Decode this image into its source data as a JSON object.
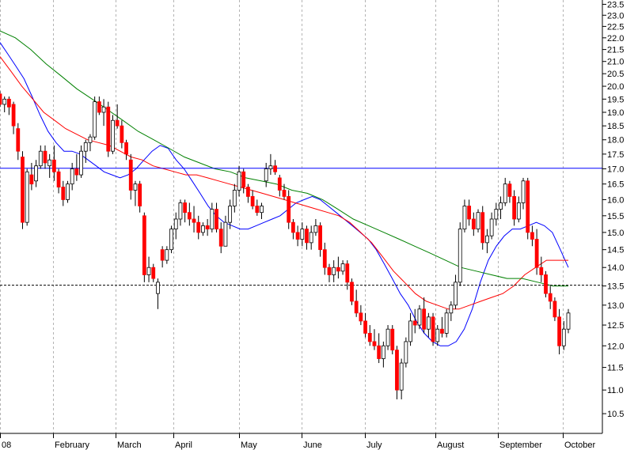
{
  "chart_data": {
    "type": "candlestick",
    "title": "",
    "xlabel": "",
    "ylabel": "",
    "ylim": [
      10.1,
      23.7
    ],
    "y_scale": "log",
    "grid": {
      "vertical": true,
      "horizontal": false
    },
    "x_tick_labels": [
      "08",
      "February",
      "March",
      "April",
      "May",
      "June",
      "July",
      "August",
      "September",
      "October"
    ],
    "y_tick_labels": [
      "10.5",
      "11.0",
      "11.5",
      "12.0",
      "12.5",
      "13.0",
      "13.5",
      "14.0",
      "14.5",
      "15.0",
      "15.5",
      "16.0",
      "16.5",
      "17.0",
      "17.5",
      "18.0",
      "18.5",
      "19.0",
      "19.5",
      "20.0",
      "20.5",
      "21.0",
      "21.5",
      "22.0",
      "22.5",
      "23.0",
      "23.5"
    ],
    "reference_lines": [
      {
        "value": 17.02,
        "style": "solid",
        "color": "#0000ff"
      },
      {
        "value": 13.52,
        "style": "dashed",
        "color": "#000000"
      }
    ],
    "candles": [
      {
        "o": 19.7,
        "h": 19.8,
        "l": 19.2,
        "c": 19.3
      },
      {
        "o": 19.3,
        "h": 19.6,
        "l": 19.0,
        "c": 19.5
      },
      {
        "o": 19.5,
        "h": 19.6,
        "l": 18.9,
        "c": 19.2
      },
      {
        "o": 19.3,
        "h": 19.4,
        "l": 18.2,
        "c": 18.5
      },
      {
        "o": 18.4,
        "h": 18.6,
        "l": 17.3,
        "c": 17.6
      },
      {
        "o": 17.4,
        "h": 17.6,
        "l": 15.1,
        "c": 15.3
      },
      {
        "o": 15.3,
        "h": 17.0,
        "l": 15.2,
        "c": 16.9
      },
      {
        "o": 16.8,
        "h": 17.2,
        "l": 16.3,
        "c": 16.5
      },
      {
        "o": 16.6,
        "h": 17.3,
        "l": 16.4,
        "c": 17.1
      },
      {
        "o": 17.1,
        "h": 17.8,
        "l": 17.0,
        "c": 17.6
      },
      {
        "o": 17.6,
        "h": 17.8,
        "l": 17.0,
        "c": 17.2
      },
      {
        "o": 17.1,
        "h": 17.5,
        "l": 16.7,
        "c": 17.3
      },
      {
        "o": 17.3,
        "h": 17.8,
        "l": 16.6,
        "c": 16.9
      },
      {
        "o": 16.9,
        "h": 17.0,
        "l": 16.2,
        "c": 16.4
      },
      {
        "o": 16.4,
        "h": 16.6,
        "l": 15.8,
        "c": 16.0
      },
      {
        "o": 16.0,
        "h": 16.6,
        "l": 15.9,
        "c": 16.5
      },
      {
        "o": 16.5,
        "h": 17.2,
        "l": 16.3,
        "c": 17.0
      },
      {
        "o": 17.0,
        "h": 17.5,
        "l": 16.6,
        "c": 16.8
      },
      {
        "o": 16.8,
        "h": 17.8,
        "l": 16.7,
        "c": 17.6
      },
      {
        "o": 17.6,
        "h": 18.0,
        "l": 17.2,
        "c": 17.9
      },
      {
        "o": 17.9,
        "h": 18.2,
        "l": 17.6,
        "c": 18.1
      },
      {
        "o": 18.1,
        "h": 19.6,
        "l": 18.0,
        "c": 19.4
      },
      {
        "o": 19.4,
        "h": 19.6,
        "l": 18.9,
        "c": 19.0
      },
      {
        "o": 19.0,
        "h": 19.5,
        "l": 18.5,
        "c": 19.2
      },
      {
        "o": 19.2,
        "h": 19.4,
        "l": 17.4,
        "c": 17.6
      },
      {
        "o": 17.6,
        "h": 18.9,
        "l": 17.5,
        "c": 18.7
      },
      {
        "o": 18.7,
        "h": 19.3,
        "l": 18.4,
        "c": 18.5
      },
      {
        "o": 18.5,
        "h": 18.7,
        "l": 17.7,
        "c": 17.9
      },
      {
        "o": 17.9,
        "h": 18.0,
        "l": 17.3,
        "c": 17.5
      },
      {
        "o": 17.3,
        "h": 17.5,
        "l": 16.0,
        "c": 16.3
      },
      {
        "o": 16.3,
        "h": 16.6,
        "l": 15.8,
        "c": 16.5
      },
      {
        "o": 16.5,
        "h": 16.6,
        "l": 15.6,
        "c": 15.8
      },
      {
        "o": 15.5,
        "h": 15.6,
        "l": 13.6,
        "c": 13.8
      },
      {
        "o": 13.8,
        "h": 14.3,
        "l": 13.6,
        "c": 14.0
      },
      {
        "o": 14.0,
        "h": 14.1,
        "l": 13.6,
        "c": 13.7
      },
      {
        "o": 13.3,
        "h": 13.7,
        "l": 12.9,
        "c": 13.6
      },
      {
        "o": 14.5,
        "h": 14.6,
        "l": 14.0,
        "c": 14.2
      },
      {
        "o": 14.2,
        "h": 14.6,
        "l": 14.1,
        "c": 14.5
      },
      {
        "o": 14.5,
        "h": 15.2,
        "l": 14.4,
        "c": 15.1
      },
      {
        "o": 15.1,
        "h": 15.6,
        "l": 14.8,
        "c": 15.4
      },
      {
        "o": 15.4,
        "h": 16.0,
        "l": 15.2,
        "c": 15.9
      },
      {
        "o": 15.9,
        "h": 16.0,
        "l": 15.3,
        "c": 15.6
      },
      {
        "o": 15.6,
        "h": 15.9,
        "l": 15.2,
        "c": 15.4
      },
      {
        "o": 15.4,
        "h": 15.8,
        "l": 15.0,
        "c": 15.3
      },
      {
        "o": 15.3,
        "h": 15.5,
        "l": 14.8,
        "c": 15.0
      },
      {
        "o": 15.0,
        "h": 15.3,
        "l": 14.9,
        "c": 15.2
      },
      {
        "o": 15.2,
        "h": 15.4,
        "l": 14.9,
        "c": 15.1
      },
      {
        "o": 15.1,
        "h": 15.9,
        "l": 15.0,
        "c": 15.7
      },
      {
        "o": 15.7,
        "h": 15.9,
        "l": 15.0,
        "c": 15.1
      },
      {
        "o": 15.1,
        "h": 15.3,
        "l": 14.4,
        "c": 14.6
      },
      {
        "o": 14.6,
        "h": 15.5,
        "l": 14.6,
        "c": 15.3
      },
      {
        "o": 15.3,
        "h": 16.0,
        "l": 15.1,
        "c": 15.8
      },
      {
        "o": 15.8,
        "h": 16.5,
        "l": 15.6,
        "c": 16.3
      },
      {
        "o": 16.3,
        "h": 17.1,
        "l": 16.1,
        "c": 16.9
      },
      {
        "o": 16.9,
        "h": 17.0,
        "l": 16.2,
        "c": 16.4
      },
      {
        "o": 16.4,
        "h": 16.5,
        "l": 15.9,
        "c": 16.1
      },
      {
        "o": 16.1,
        "h": 16.3,
        "l": 15.7,
        "c": 15.8
      },
      {
        "o": 15.8,
        "h": 16.0,
        "l": 15.5,
        "c": 15.6
      },
      {
        "o": 15.6,
        "h": 15.9,
        "l": 15.4,
        "c": 15.8
      },
      {
        "o": 16.6,
        "h": 17.2,
        "l": 16.4,
        "c": 17.0
      },
      {
        "o": 17.0,
        "h": 17.5,
        "l": 16.8,
        "c": 17.1
      },
      {
        "o": 17.1,
        "h": 17.3,
        "l": 16.8,
        "c": 16.9
      },
      {
        "o": 16.7,
        "h": 16.8,
        "l": 16.1,
        "c": 16.3
      },
      {
        "o": 16.3,
        "h": 16.5,
        "l": 16.0,
        "c": 16.1
      },
      {
        "o": 16.1,
        "h": 16.3,
        "l": 15.1,
        "c": 15.3
      },
      {
        "o": 15.3,
        "h": 15.4,
        "l": 14.8,
        "c": 15.0
      },
      {
        "o": 15.0,
        "h": 15.2,
        "l": 14.6,
        "c": 14.8
      },
      {
        "o": 14.8,
        "h": 15.3,
        "l": 14.6,
        "c": 15.1
      },
      {
        "o": 15.1,
        "h": 15.2,
        "l": 14.5,
        "c": 14.7
      },
      {
        "o": 14.7,
        "h": 15.2,
        "l": 14.5,
        "c": 15.0
      },
      {
        "o": 15.0,
        "h": 15.4,
        "l": 14.9,
        "c": 15.2
      },
      {
        "o": 15.2,
        "h": 15.3,
        "l": 14.3,
        "c": 14.5
      },
      {
        "o": 14.5,
        "h": 14.7,
        "l": 13.8,
        "c": 14.0
      },
      {
        "o": 14.0,
        "h": 14.1,
        "l": 13.6,
        "c": 13.8
      },
      {
        "o": 13.8,
        "h": 14.2,
        "l": 13.6,
        "c": 14.0
      },
      {
        "o": 14.0,
        "h": 14.3,
        "l": 13.7,
        "c": 13.9
      },
      {
        "o": 13.9,
        "h": 14.2,
        "l": 13.8,
        "c": 14.1
      },
      {
        "o": 14.1,
        "h": 14.2,
        "l": 13.4,
        "c": 13.6
      },
      {
        "o": 13.6,
        "h": 13.7,
        "l": 13.0,
        "c": 13.1
      },
      {
        "o": 13.1,
        "h": 13.4,
        "l": 12.7,
        "c": 12.8
      },
      {
        "o": 12.8,
        "h": 13.0,
        "l": 12.5,
        "c": 12.6
      },
      {
        "o": 12.6,
        "h": 12.8,
        "l": 12.2,
        "c": 12.3
      },
      {
        "o": 12.3,
        "h": 12.5,
        "l": 12.0,
        "c": 12.1
      },
      {
        "o": 12.1,
        "h": 12.4,
        "l": 11.9,
        "c": 12.0
      },
      {
        "o": 12.0,
        "h": 12.3,
        "l": 11.6,
        "c": 11.7
      },
      {
        "o": 11.7,
        "h": 12.1,
        "l": 11.5,
        "c": 12.0
      },
      {
        "o": 12.0,
        "h": 12.5,
        "l": 11.9,
        "c": 12.4
      },
      {
        "o": 12.4,
        "h": 12.5,
        "l": 11.8,
        "c": 11.9
      },
      {
        "o": 11.9,
        "h": 12.0,
        "l": 10.8,
        "c": 11.0
      },
      {
        "o": 11.0,
        "h": 11.7,
        "l": 10.8,
        "c": 11.6
      },
      {
        "o": 11.6,
        "h": 12.2,
        "l": 11.5,
        "c": 12.1
      },
      {
        "o": 12.1,
        "h": 12.8,
        "l": 12.0,
        "c": 12.6
      },
      {
        "o": 12.6,
        "h": 12.9,
        "l": 12.3,
        "c": 12.5
      },
      {
        "o": 12.5,
        "h": 13.0,
        "l": 12.4,
        "c": 12.9
      },
      {
        "o": 12.9,
        "h": 13.2,
        "l": 12.3,
        "c": 12.4
      },
      {
        "o": 12.4,
        "h": 12.8,
        "l": 12.2,
        "c": 12.7
      },
      {
        "o": 12.7,
        "h": 12.8,
        "l": 12.0,
        "c": 12.1
      },
      {
        "o": 12.1,
        "h": 12.5,
        "l": 12.0,
        "c": 12.4
      },
      {
        "o": 12.4,
        "h": 12.7,
        "l": 12.2,
        "c": 12.3
      },
      {
        "o": 12.3,
        "h": 12.9,
        "l": 12.2,
        "c": 12.8
      },
      {
        "o": 12.8,
        "h": 13.1,
        "l": 12.6,
        "c": 13.0
      },
      {
        "o": 13.0,
        "h": 13.8,
        "l": 12.9,
        "c": 13.6
      },
      {
        "o": 13.6,
        "h": 15.3,
        "l": 13.5,
        "c": 15.1
      },
      {
        "o": 15.1,
        "h": 16.0,
        "l": 15.0,
        "c": 15.8
      },
      {
        "o": 15.8,
        "h": 16.0,
        "l": 15.2,
        "c": 15.4
      },
      {
        "o": 15.4,
        "h": 15.6,
        "l": 14.9,
        "c": 15.1
      },
      {
        "o": 15.1,
        "h": 15.7,
        "l": 15.0,
        "c": 15.6
      },
      {
        "o": 15.6,
        "h": 15.8,
        "l": 14.5,
        "c": 14.7
      },
      {
        "o": 14.7,
        "h": 15.1,
        "l": 14.4,
        "c": 14.9
      },
      {
        "o": 14.9,
        "h": 15.6,
        "l": 14.8,
        "c": 15.4
      },
      {
        "o": 15.4,
        "h": 15.9,
        "l": 15.2,
        "c": 15.7
      },
      {
        "o": 15.7,
        "h": 16.1,
        "l": 15.4,
        "c": 15.9
      },
      {
        "o": 15.9,
        "h": 16.7,
        "l": 15.8,
        "c": 16.5
      },
      {
        "o": 16.5,
        "h": 16.6,
        "l": 15.9,
        "c": 16.1
      },
      {
        "o": 16.1,
        "h": 16.3,
        "l": 15.2,
        "c": 15.4
      },
      {
        "o": 15.4,
        "h": 16.1,
        "l": 15.3,
        "c": 15.9
      },
      {
        "o": 15.9,
        "h": 16.7,
        "l": 15.7,
        "c": 16.6
      },
      {
        "o": 16.6,
        "h": 16.7,
        "l": 14.8,
        "c": 15.0
      },
      {
        "o": 15.0,
        "h": 15.2,
        "l": 14.6,
        "c": 14.8
      },
      {
        "o": 14.8,
        "h": 15.1,
        "l": 13.8,
        "c": 14.0
      },
      {
        "o": 14.0,
        "h": 14.3,
        "l": 13.6,
        "c": 13.8
      },
      {
        "o": 13.8,
        "h": 13.9,
        "l": 13.2,
        "c": 13.3
      },
      {
        "o": 13.3,
        "h": 13.5,
        "l": 12.9,
        "c": 13.1
      },
      {
        "o": 13.1,
        "h": 13.2,
        "l": 12.6,
        "c": 12.7
      },
      {
        "o": 12.7,
        "h": 12.9,
        "l": 11.8,
        "c": 12.0
      },
      {
        "o": 12.0,
        "h": 12.6,
        "l": 11.9,
        "c": 12.4
      },
      {
        "o": 12.4,
        "h": 12.9,
        "l": 12.3,
        "c": 12.8
      }
    ],
    "series": [
      {
        "color": "#0000ff",
        "values": [
          21.8,
          21.3,
          20.8,
          20.3,
          19.6,
          18.9,
          18.3,
          17.9,
          17.6,
          17.6,
          17.5,
          17.3,
          17.1,
          16.9,
          16.8,
          16.7,
          16.8,
          17.0,
          17.3,
          17.6,
          17.8,
          17.7,
          17.3,
          17.0,
          16.6,
          16.2,
          15.8,
          15.5,
          15.3,
          15.2,
          15.1,
          15.1,
          15.2,
          15.3,
          15.4,
          15.5,
          15.7,
          15.9,
          16.0,
          16.1,
          16.0,
          15.8,
          15.6,
          15.4,
          15.2,
          15.0,
          14.8,
          14.5,
          14.1,
          13.7,
          13.3,
          13.0,
          12.6,
          12.3,
          12.1,
          12.0,
          12.0,
          12.1,
          12.4,
          12.9,
          13.6,
          14.2,
          14.6,
          14.9,
          15.1,
          15.1,
          15.2,
          15.3,
          15.2,
          15.0,
          14.5,
          14.0
        ]
      },
      {
        "color": "#ff0000",
        "values": [
          21.2,
          20.6,
          20.0,
          19.5,
          19.0,
          18.7,
          18.4,
          18.2,
          18.0,
          17.9,
          17.8,
          17.6,
          17.4,
          17.3,
          17.1,
          17.0,
          16.9,
          16.8,
          16.8,
          16.7,
          16.6,
          16.5,
          16.4,
          16.3,
          16.2,
          16.1,
          16.0,
          15.9,
          15.8,
          15.7,
          15.6,
          15.5,
          15.3,
          15.0,
          14.7,
          14.3,
          13.9,
          13.6,
          13.3,
          13.1,
          13.0,
          12.9,
          12.9,
          13.0,
          13.1,
          13.2,
          13.3,
          13.5,
          13.8,
          14.0,
          14.2,
          14.2,
          14.2
        ]
      },
      {
        "color": "#008000",
        "values": [
          22.3,
          22.0,
          21.5,
          20.9,
          20.4,
          19.9,
          19.5,
          19.1,
          18.7,
          18.3,
          18.0,
          17.7,
          17.4,
          17.2,
          17.0,
          16.9,
          16.7,
          16.6,
          16.5,
          16.3,
          16.2,
          16.0,
          15.7,
          15.4,
          15.2,
          15.0,
          14.8,
          14.6,
          14.4,
          14.2,
          14.0,
          13.9,
          13.8,
          13.7,
          13.7,
          13.6,
          13.5,
          13.5
        ]
      }
    ]
  }
}
